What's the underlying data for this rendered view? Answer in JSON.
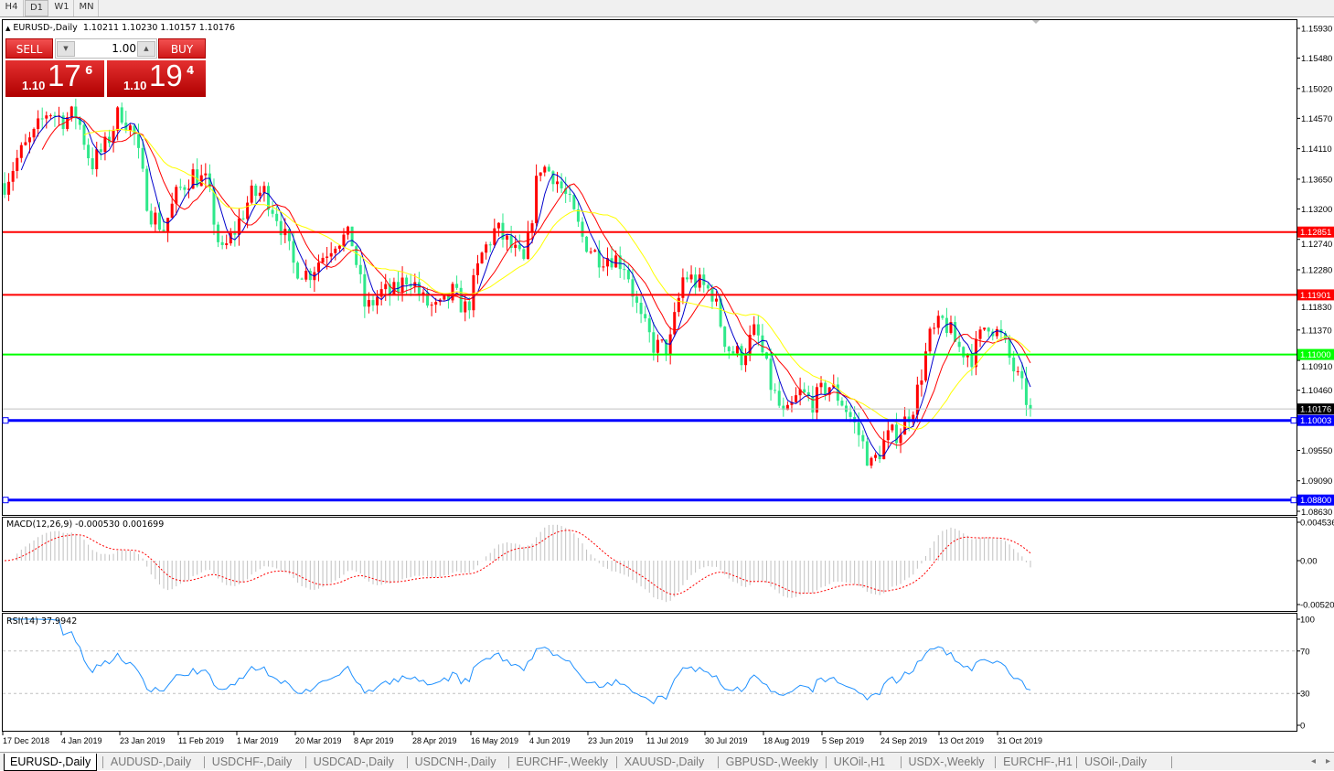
{
  "timeframes": [
    {
      "label": "H4",
      "active": false
    },
    {
      "label": "D1",
      "active": true
    },
    {
      "label": "W1",
      "active": false
    },
    {
      "label": "MN",
      "active": false
    }
  ],
  "chart_header": {
    "symbol": "EURUSD-,Daily",
    "ohlc": "1.10211 1.10230 1.10157 1.10176"
  },
  "trade_panel": {
    "sell_label": "SELL",
    "buy_label": "BUY",
    "lot": "1.00",
    "sell_price": {
      "prefix": "1.10",
      "big": "17",
      "sup": "6"
    },
    "buy_price": {
      "prefix": "1.10",
      "big": "19",
      "sup": "4"
    }
  },
  "colors": {
    "bull_candle": "#ff0000",
    "bear_candle": "#2ee88a",
    "ma_fast": "#0000cc",
    "ma_mid": "#ff0000",
    "ma_slow": "#ffff00",
    "macd_hist": "#c0c0c0",
    "macd_signal": "#ff0000",
    "rsi": "#1e90ff"
  },
  "chart_data": [
    {
      "type": "candlestick",
      "ylim": [
        1.0863,
        1.1593
      ],
      "y_ticks": [
        "1.15930",
        "1.15480",
        "1.15020",
        "1.14570",
        "1.14110",
        "1.13650",
        "1.13200",
        "1.12740",
        "1.12280",
        "1.11830",
        "1.11370",
        "1.10910",
        "1.10460",
        "1.09550",
        "1.09090",
        "1.08630"
      ],
      "x_ticks": [
        "17 Dec 2018",
        "4 Jan 2019",
        "23 Jan 2019",
        "11 Feb 2019",
        "1 Mar 2019",
        "20 Mar 2019",
        "8 Apr 2019",
        "28 Apr 2019",
        "16 May 2019",
        "4 Jun 2019",
        "23 Jun 2019",
        "11 Jul 2019",
        "30 Jul 2019",
        "18 Aug 2019",
        "5 Sep 2019",
        "24 Sep 2019",
        "13 Oct 2019",
        "31 Oct 2019"
      ],
      "approx_closes": [
        1.1359,
        1.1401,
        1.1429,
        1.147,
        1.1456,
        1.1463,
        1.1387,
        1.1415,
        1.147,
        1.1429,
        1.1318,
        1.129,
        1.1346,
        1.1373,
        1.1359,
        1.1249,
        1.129,
        1.1339,
        1.1346,
        1.1304,
        1.1235,
        1.1221,
        1.1249,
        1.1276,
        1.1276,
        1.1166,
        1.1193,
        1.1193,
        1.1221,
        1.118,
        1.1166,
        1.1193,
        1.1166,
        1.1249,
        1.129,
        1.1263,
        1.1235,
        1.1387,
        1.1373,
        1.1332,
        1.1276,
        1.1249,
        1.1249,
        1.1235,
        1.1152,
        1.1111,
        1.1111,
        1.1221,
        1.1207,
        1.1193,
        1.1111,
        1.1097,
        1.1138,
        1.1055,
        1.1,
        1.1041,
        1.1028,
        1.1055,
        1.1028,
        1.0986,
        1.0931,
        1.0972,
        1.0986,
        1.1028,
        1.1124,
        1.1152,
        1.1111,
        1.1097,
        1.1152,
        1.1124,
        1.1069,
        1.1018
      ],
      "current_price": "1.10176",
      "levels": [
        {
          "price": "1.12851",
          "color": "#ff0000"
        },
        {
          "price": "1.11901",
          "color": "#ff0000"
        },
        {
          "price": "1.11000",
          "color": "#00ff00"
        },
        {
          "price": "1.10003",
          "color": "#0000ff"
        },
        {
          "price": "1.08800",
          "color": "#0000ff"
        }
      ]
    },
    {
      "type": "macd",
      "title": "MACD(12,26,9) -0.000530 0.001699",
      "ylim": [
        -0.0052,
        0.004536
      ],
      "y_ticks": [
        "0.004536",
        "0.00",
        "-0.00520"
      ]
    },
    {
      "type": "rsi",
      "title": "RSI(14) 37.9942",
      "ylim": [
        0,
        100
      ],
      "y_ticks": [
        "100",
        "70",
        "30",
        "0"
      ],
      "levels": [
        70,
        30
      ]
    }
  ],
  "tabs": [
    "EURUSD-,Daily",
    "AUDUSD-,Daily",
    "USDCHF-,Daily",
    "USDCAD-,Daily",
    "USDCNH-,Daily",
    "EURCHF-,Weekly",
    "XAUUSD-,Daily",
    "GBPUSD-,Weekly",
    "UKOil-,H1",
    "USDX-,Weekly",
    "EURCHF-,H1",
    "USOil-,Daily"
  ],
  "active_tab": 0
}
